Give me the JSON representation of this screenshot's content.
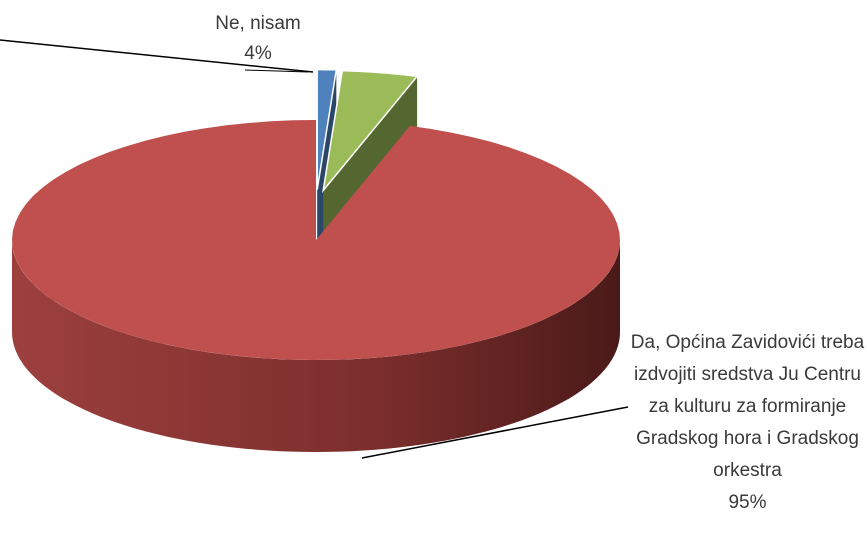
{
  "chart_data": {
    "type": "pie3d",
    "categories": [
      null,
      "Ne, nisam",
      "Da, Općina Zavidovići treba izdvojiti sredstva Ju Centru za kulturu za formiranje Gradskog hora i Gradskog orkestra"
    ],
    "values": [
      1,
      4,
      95
    ],
    "value_labels": [
      null,
      "4%",
      "95%"
    ],
    "colors": [
      "#4f81bd",
      "#9bbb59",
      "#c0504d"
    ],
    "exploded": [
      true,
      true,
      false
    ]
  }
}
